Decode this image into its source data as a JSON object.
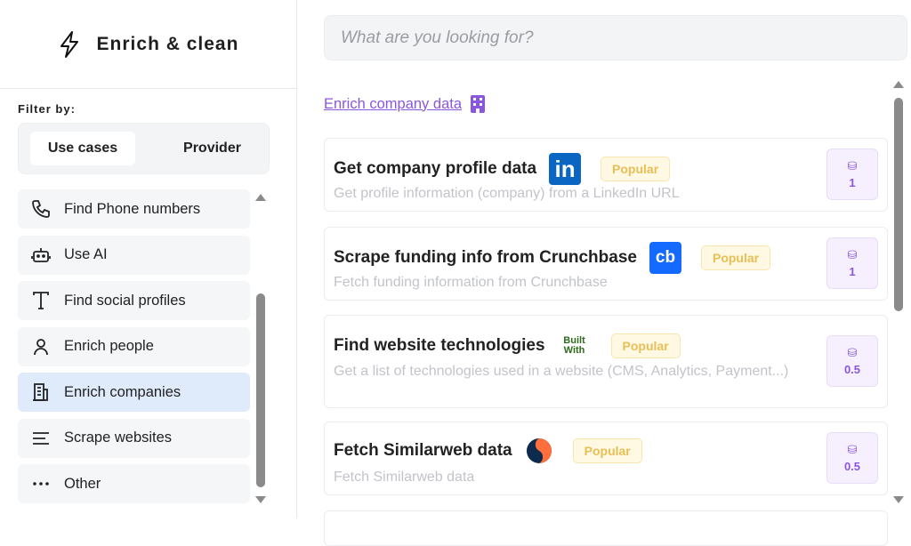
{
  "sidebar": {
    "title": "Enrich & clean",
    "filter_label": "Filter by:",
    "tabs": [
      "Use cases",
      "Provider"
    ],
    "active_tab": "Use cases",
    "items": [
      {
        "label": "Find Phone numbers",
        "icon": "phone-icon"
      },
      {
        "label": "Use AI",
        "icon": "robot-icon"
      },
      {
        "label": "Find social profiles",
        "icon": "text-t-icon"
      },
      {
        "label": "Enrich people",
        "icon": "person-icon"
      },
      {
        "label": "Enrich companies",
        "icon": "building-icon",
        "selected": true
      },
      {
        "label": "Scrape websites",
        "icon": "lines-icon"
      },
      {
        "label": "Other",
        "icon": "more-dots-icon"
      }
    ]
  },
  "search": {
    "placeholder": "What are you looking for?"
  },
  "section": {
    "title": "Enrich company data",
    "icon": "building-icon"
  },
  "colors": {
    "accent": "#8a56e0",
    "badge": "#e8bf55",
    "selected": "#dfeafb"
  },
  "cards": [
    {
      "title": "Get company profile data",
      "provider": "LinkedIn",
      "logo_text": "in",
      "badge": "Popular",
      "description": "Get profile information (company) from a LinkedIn URL",
      "credits": "1"
    },
    {
      "title": "Scrape funding info from Crunchbase",
      "provider": "Crunchbase",
      "logo_text": "cb",
      "badge": "Popular",
      "description": "Fetch funding information from Crunchbase",
      "credits": "1"
    },
    {
      "title": "Find website technologies",
      "provider": "BuiltWith",
      "logo_text": "Built With",
      "badge": "Popular",
      "description": "Get a list of technologies used in a website (CMS, Analytics, Payment...)",
      "credits": "0.5"
    },
    {
      "title": "Fetch Similarweb data",
      "provider": "Similarweb",
      "badge": "Popular",
      "description": "Fetch Similarweb data",
      "credits": "0.5"
    }
  ]
}
